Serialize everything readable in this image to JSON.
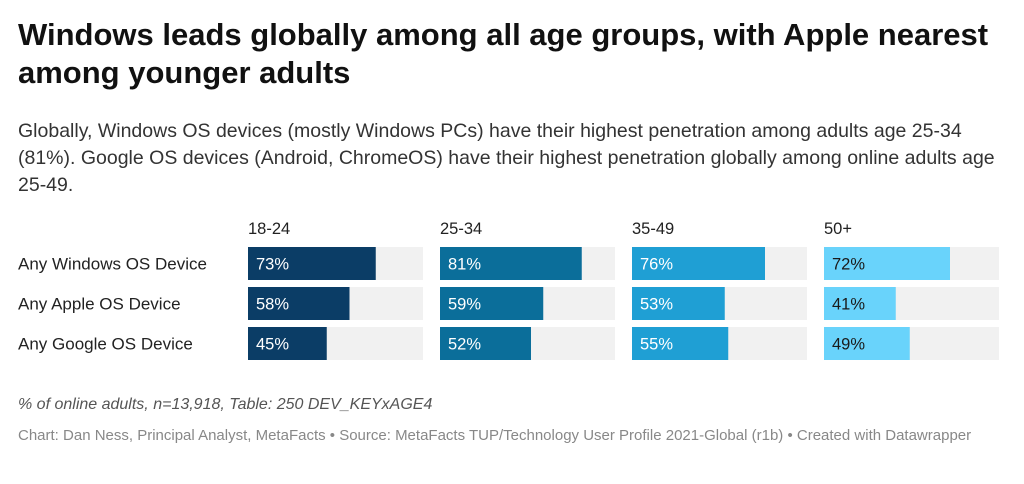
{
  "title": "Windows leads globally among all age groups, with Apple nearest among younger adults",
  "subtitle": "Globally, Windows OS devices (mostly Windows PCs) have their highest penetration among adults age 25-34 (81%). Google OS devices (Android, ChromeOS) have their highest penetration globally among online adults age 25-49.",
  "note": "% of online adults, n=13,918, Table: 250 DEV_KEYxAGE4",
  "credit": "Chart: Dan Ness, Principal Analyst, MetaFacts • Source: MetaFacts TUP/Technology User Profile 2021-Global (r1b) • Created with Datawrapper",
  "chart_data": {
    "type": "bar",
    "orientation": "horizontal",
    "layout": "small-multiples",
    "categories": [
      "Any Windows OS Device",
      "Any Apple OS Device",
      "Any Google OS Device"
    ],
    "series": [
      {
        "name": "18-24",
        "values": [
          73,
          58,
          45
        ],
        "color": "#0b3d66"
      },
      {
        "name": "25-34",
        "values": [
          81,
          59,
          52
        ],
        "color": "#0b6e9a"
      },
      {
        "name": "35-49",
        "values": [
          76,
          53,
          55
        ],
        "color": "#1f9fd4"
      },
      {
        "name": "50+",
        "values": [
          72,
          41,
          49
        ],
        "color": "#69d3fb"
      }
    ],
    "value_suffix": "%",
    "xlim": [
      0,
      100
    ],
    "track_color": "#f1f1f1",
    "grid": false
  }
}
